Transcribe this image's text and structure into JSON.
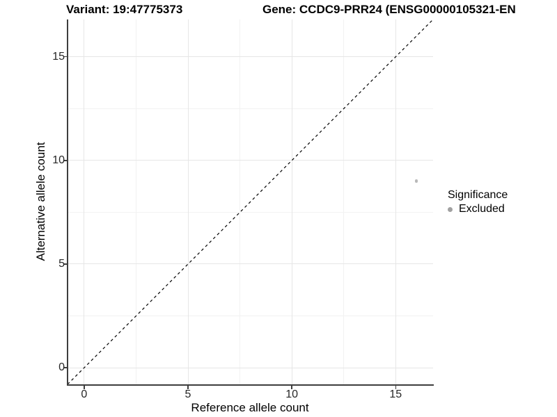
{
  "titles": {
    "variant": "Variant: 19:47775373",
    "gene": "Gene: CCDC9-PRR24 (ENSG00000105321-EN"
  },
  "chart_data": {
    "type": "scatter",
    "xlabel": "Reference allele count",
    "ylabel": "Alternative allele count",
    "xlim": [
      -0.8,
      16.8
    ],
    "ylim": [
      -0.8,
      16.8
    ],
    "x_ticks": [
      0,
      5,
      10,
      15
    ],
    "y_ticks": [
      0,
      5,
      10,
      15
    ],
    "minor_ticks": [
      2.5,
      7.5,
      12.5
    ],
    "grid": "major and minor gridlines on white background",
    "reference_line": {
      "type": "identity y=x",
      "style": "dashed",
      "color": "#000000"
    },
    "series": [
      {
        "name": "Excluded",
        "color": "#b9b9b9",
        "points": [
          [
            16,
            9
          ]
        ]
      }
    ],
    "legend": {
      "title": "Significance",
      "position": "right",
      "items": [
        {
          "label": "Excluded",
          "color": "#a1a1a1"
        }
      ]
    }
  },
  "colors": {
    "grid_major": "#e6e6e6",
    "grid_minor": "#f2f2f2",
    "axis_line": "#3d3d3d",
    "tick_text": "#262626",
    "accent_point": "#b9b9b9"
  }
}
